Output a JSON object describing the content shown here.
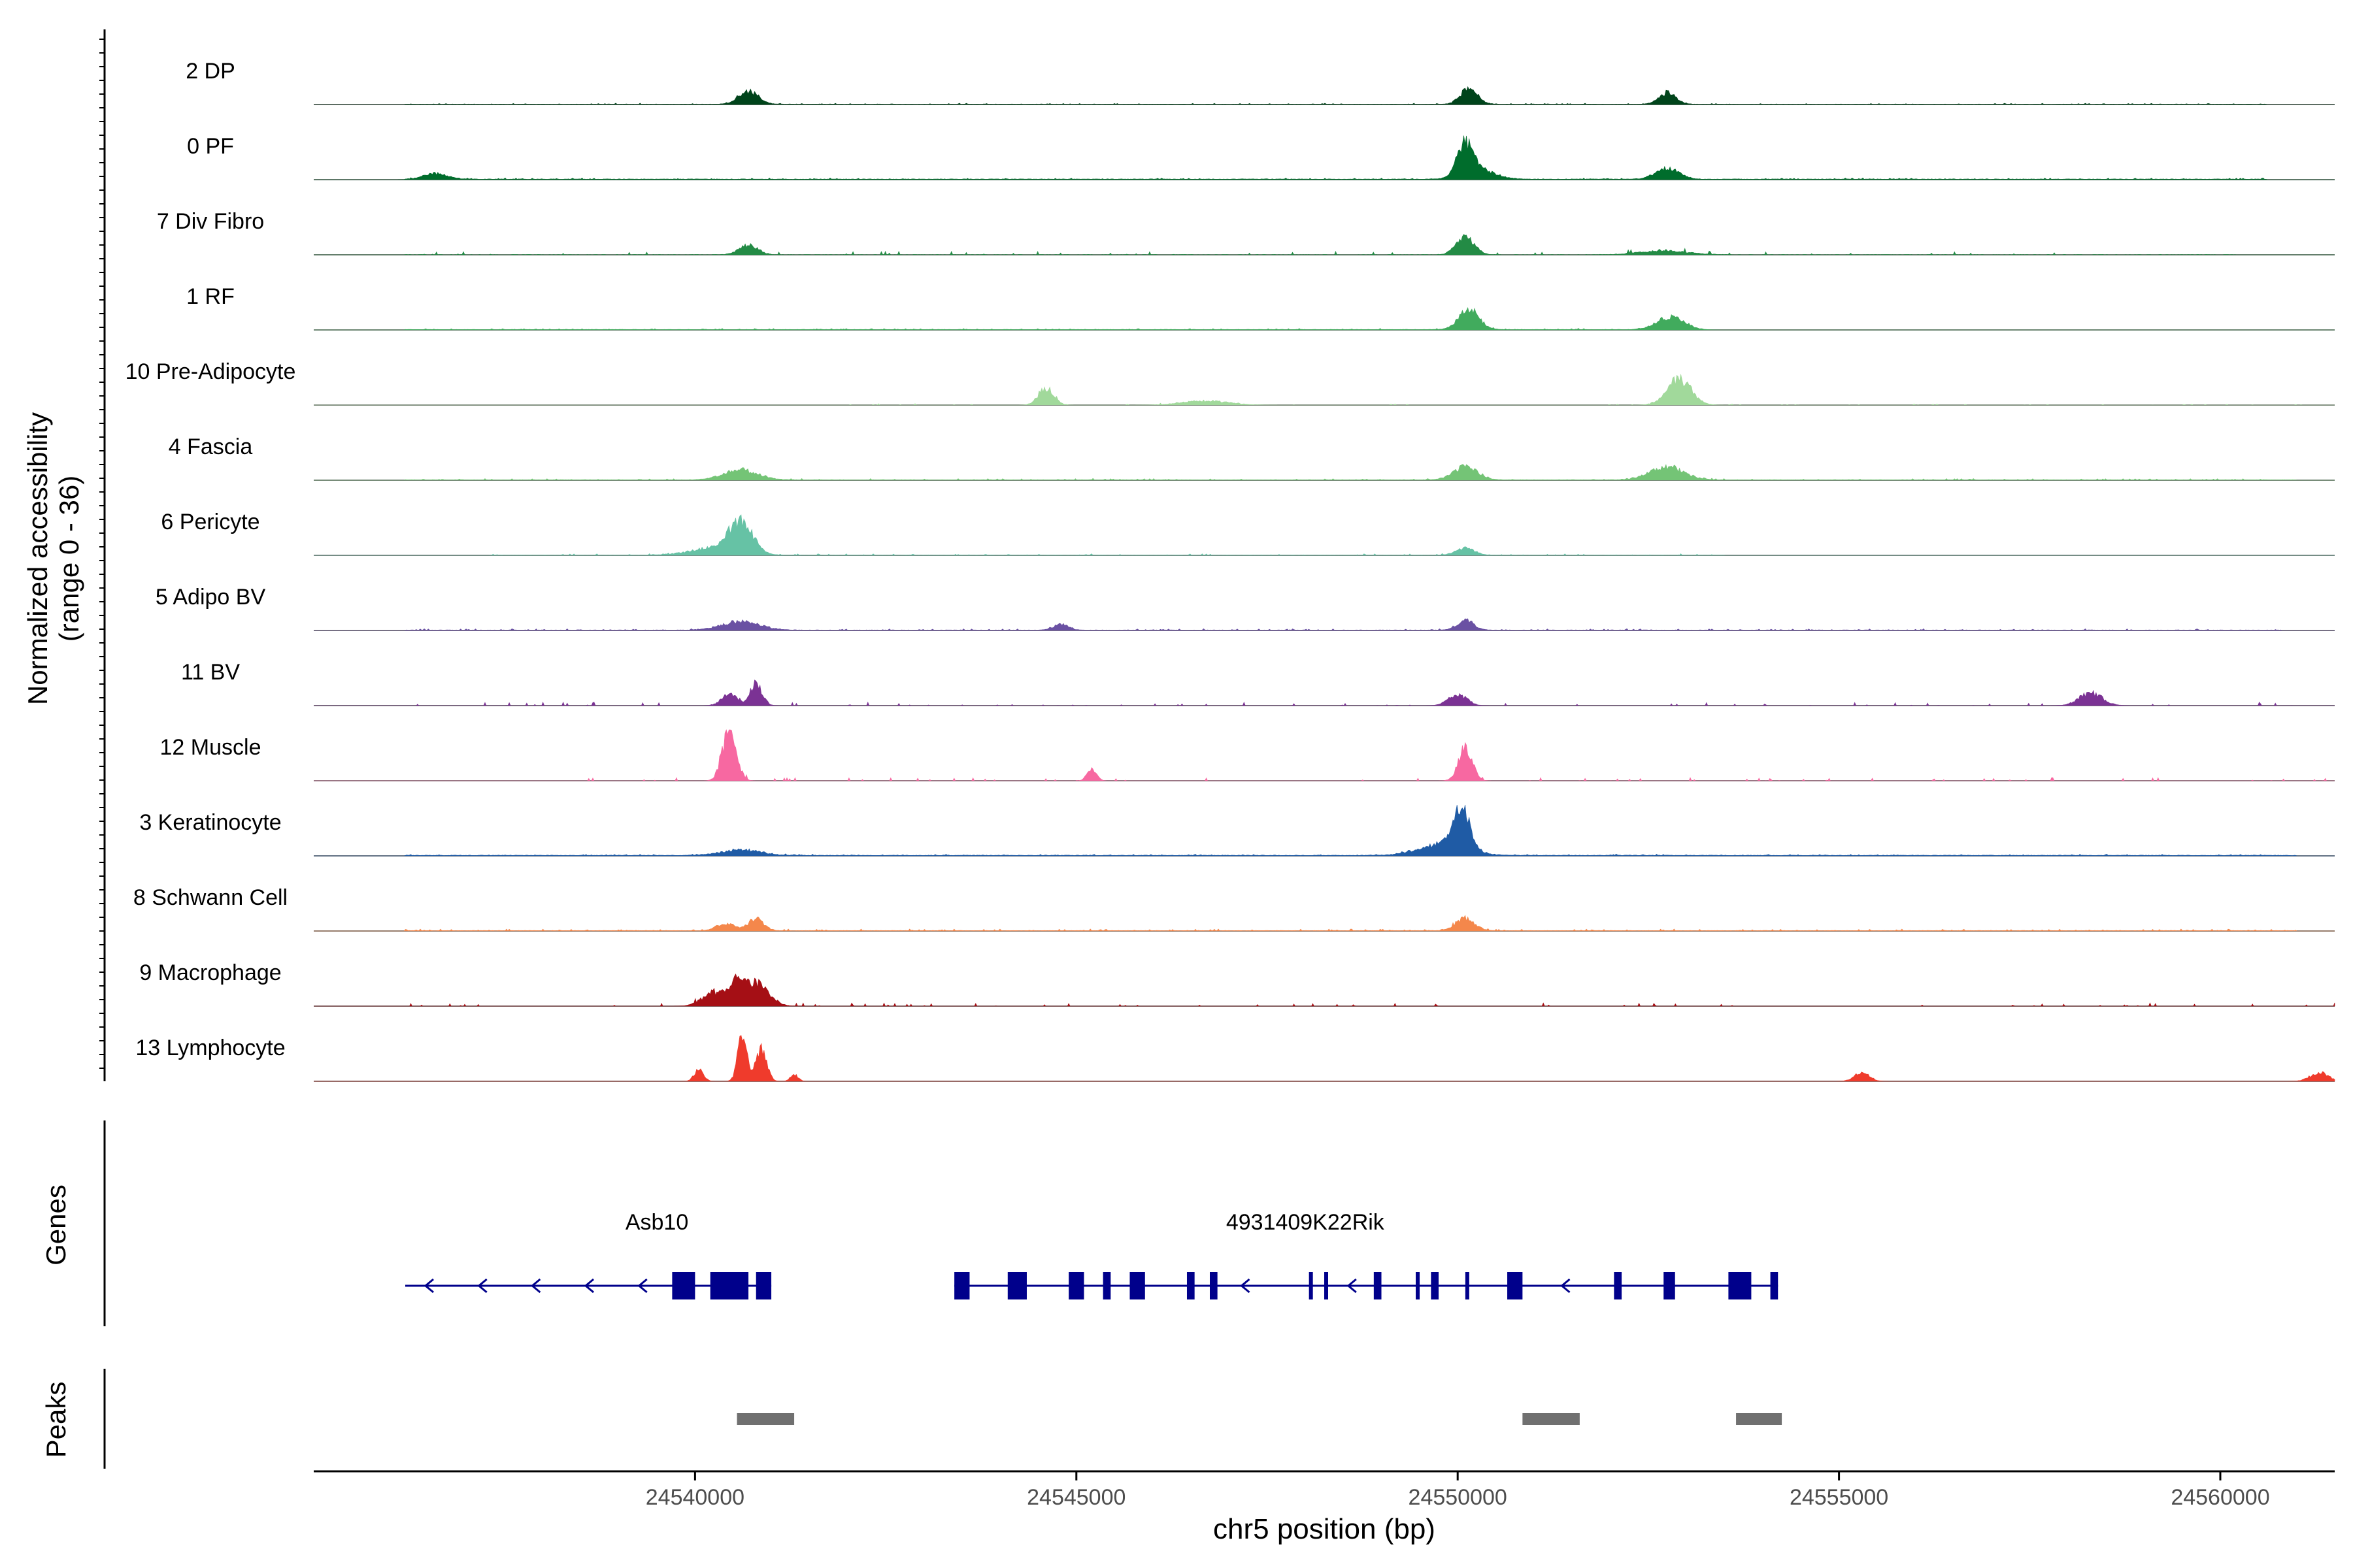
{
  "chart_data": {
    "type": "area",
    "chromosome": "chr5",
    "xlabel": "chr5 position (bp)",
    "xlim": [
      24535000,
      24561500
    ],
    "xticks": [
      24540000,
      24545000,
      24550000,
      24555000,
      24560000
    ],
    "xtick_labels": [
      "24540000",
      "24545000",
      "24550000",
      "24555000",
      "24560000"
    ],
    "ylabel_line1": "Normalized accessibility",
    "ylabel_line2": "(range 0 - 36)",
    "ylim": [
      0,
      36
    ],
    "tracks": [
      {
        "name": "2 DP",
        "color": "#00441b",
        "baseline": 0.25,
        "noise": 0.25,
        "gaps": false,
        "segments": [
          [
            24536200,
            24560600
          ]
        ],
        "peaks": [
          [
            24540700,
            9,
            130
          ],
          [
            24550150,
            11,
            110
          ],
          [
            24552750,
            8,
            110
          ]
        ]
      },
      {
        "name": "0 PF",
        "color": "#006d2c",
        "baseline": 0.4,
        "noise": 0.3,
        "gaps": false,
        "segments": [
          [
            24536200,
            24560600
          ]
        ],
        "peaks": [
          [
            24536600,
            4,
            150
          ],
          [
            24550100,
            22,
            110
          ],
          [
            24550300,
            6,
            200
          ],
          [
            24552750,
            8,
            150
          ]
        ]
      },
      {
        "name": "7 Div Fibro",
        "color": "#238b45",
        "baseline": 0.2,
        "noise": 0.9,
        "gaps": true,
        "segments": [
          [
            24536200,
            24560200
          ]
        ],
        "peaks": [
          [
            24540700,
            7,
            120
          ],
          [
            24550100,
            12,
            120
          ],
          [
            24552700,
            3,
            300
          ]
        ]
      },
      {
        "name": "1 RF",
        "color": "#41ab5d",
        "baseline": 0.3,
        "noise": 0.3,
        "gaps": false,
        "segments": [
          [
            24536200,
            24553000
          ]
        ],
        "peaks": [
          [
            24550150,
            14,
            130
          ],
          [
            24552800,
            9,
            180
          ]
        ]
      },
      {
        "name": "10 Pre-Adipocyte",
        "color": "#a1d99b",
        "baseline": 0.0,
        "noise": 0.4,
        "gaps": true,
        "segments": [
          [
            24538500,
            24562500
          ]
        ],
        "peaks": [
          [
            24544600,
            12,
            100
          ],
          [
            24552900,
            18,
            160
          ],
          [
            24546700,
            3,
            300
          ]
        ]
      },
      {
        "name": "4 Fascia",
        "color": "#74c476",
        "baseline": 0.3,
        "noise": 0.35,
        "gaps": false,
        "segments": [
          [
            24536200,
            24561000
          ]
        ],
        "peaks": [
          [
            24540600,
            7,
            220
          ],
          [
            24550100,
            9,
            160
          ],
          [
            24552750,
            9,
            220
          ]
        ]
      },
      {
        "name": "6 Pericyte",
        "color": "#66c2a5",
        "baseline": 0.2,
        "noise": 0.35,
        "gaps": false,
        "segments": [
          [
            24537300,
            24553500
          ]
        ],
        "peaks": [
          [
            24540600,
            22,
            150
          ],
          [
            24540250,
            5,
            300
          ],
          [
            24550100,
            5,
            120
          ]
        ]
      },
      {
        "name": "5 Adipo BV",
        "color": "#6a51a3",
        "baseline": 0.3,
        "noise": 0.35,
        "gaps": false,
        "segments": [
          [
            24536200,
            24560800
          ]
        ],
        "peaks": [
          [
            24540600,
            6,
            250
          ],
          [
            24550100,
            7,
            110
          ],
          [
            24544800,
            4,
            100
          ]
        ]
      },
      {
        "name": "11 BV",
        "color": "#7b3294",
        "baseline": 0.0,
        "noise": 1.0,
        "gaps": true,
        "segments": [
          [
            24536200,
            24561000
          ]
        ],
        "peaks": [
          [
            24540800,
            16,
            80
          ],
          [
            24540450,
            8,
            100
          ],
          [
            24550000,
            8,
            120
          ],
          [
            24558300,
            9,
            150
          ]
        ]
      },
      {
        "name": "12 Muscle",
        "color": "#f768a1",
        "baseline": 0.0,
        "noise": 0.9,
        "gaps": true,
        "segments": [
          [
            24538500,
            24562500
          ]
        ],
        "peaks": [
          [
            24540450,
            38,
            90
          ],
          [
            24550100,
            22,
            90
          ],
          [
            24545200,
            8,
            60
          ]
        ]
      },
      {
        "name": "3 Keratinocyte",
        "color": "#1f5ba5",
        "baseline": 0.4,
        "noise": 0.3,
        "gaps": false,
        "segments": [
          [
            24536200,
            24561000
          ]
        ],
        "peaks": [
          [
            24550050,
            28,
            110
          ],
          [
            24549800,
            8,
            300
          ],
          [
            24540600,
            4,
            250
          ]
        ]
      },
      {
        "name": "8 Schwann Cell",
        "color": "#f4874b",
        "baseline": 0.3,
        "noise": 0.45,
        "gaps": false,
        "segments": [
          [
            24536200,
            24561000
          ]
        ],
        "peaks": [
          [
            24540800,
            8,
            100
          ],
          [
            24550100,
            9,
            120
          ],
          [
            24540400,
            5,
            120
          ]
        ]
      },
      {
        "name": "9 Macrophage",
        "color": "#a50f15",
        "baseline": 0.0,
        "noise": 1.0,
        "gaps": true,
        "segments": [
          [
            24536200,
            24561800
          ]
        ],
        "peaks": [
          [
            24540800,
            16,
            160
          ],
          [
            24540250,
            10,
            150
          ],
          [
            24540550,
            14,
            90
          ]
        ]
      },
      {
        "name": "13 Lymphocyte",
        "color": "#ef3b2c",
        "baseline": 0.0,
        "noise": 0.0,
        "gaps": false,
        "segments": [],
        "peaks": [
          [
            24540050,
            8,
            60
          ],
          [
            24540620,
            32,
            60
          ],
          [
            24540870,
            22,
            70
          ],
          [
            24541300,
            5,
            50
          ],
          [
            24555300,
            6,
            100
          ],
          [
            24561300,
            6,
            120
          ]
        ]
      }
    ],
    "genes": {
      "label": "Genes",
      "items": [
        {
          "name": "Asb10",
          "strand": "-",
          "start": 24536200,
          "end": 24541000,
          "label_pos": 24539500,
          "exons": [
            [
              24539700,
              24540000
            ],
            [
              24540200,
              24540700
            ],
            [
              24540800,
              24541000
            ]
          ]
        },
        {
          "name": "4931409K22Rik",
          "strand": "-",
          "start": 24543400,
          "end": 24554200,
          "label_pos": 24548000,
          "exons": [
            [
              24543400,
              24543600
            ],
            [
              24544100,
              24544350
            ],
            [
              24544900,
              24545100
            ],
            [
              24545350,
              24545450
            ],
            [
              24545700,
              24545900
            ],
            [
              24546450,
              24546550
            ],
            [
              24546750,
              24546850
            ],
            [
              24548050,
              24548100
            ],
            [
              24548250,
              24548300
            ],
            [
              24548900,
              24549000
            ],
            [
              24549450,
              24549500
            ],
            [
              24549650,
              24549750
            ],
            [
              24550100,
              24550150
            ],
            [
              24550650,
              24550850
            ],
            [
              24552050,
              24552150
            ],
            [
              24552700,
              24552850
            ],
            [
              24553550,
              24553850
            ],
            [
              24554100,
              24554200
            ]
          ]
        }
      ]
    },
    "peaks_track": {
      "label": "Peaks",
      "color": "#707070",
      "regions": [
        [
          24540550,
          24541300
        ],
        [
          24550850,
          24551600
        ],
        [
          24553650,
          24554250
        ]
      ]
    }
  }
}
